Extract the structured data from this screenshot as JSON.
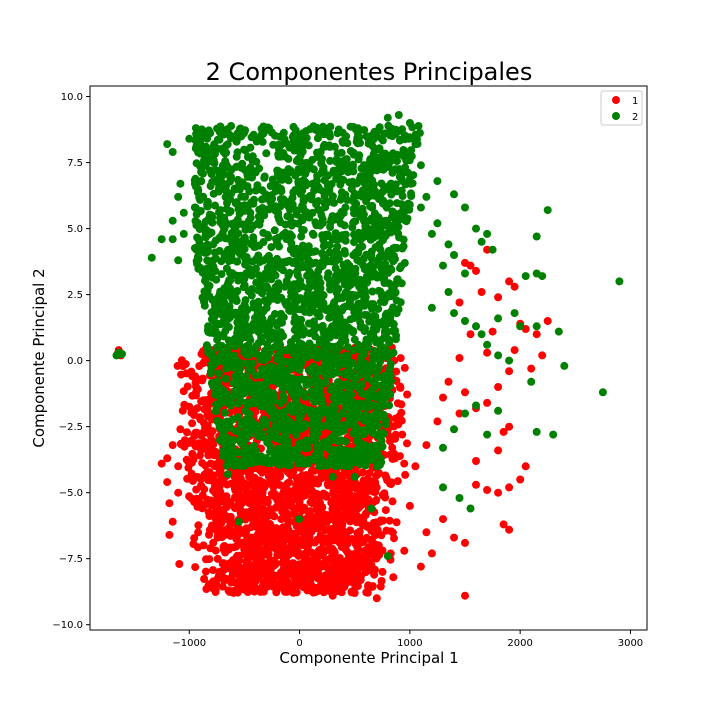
{
  "chart_data": {
    "type": "scatter",
    "title": "2 Componentes Principales",
    "xlabel": "Componente Principal 1",
    "ylabel": "Componente Principal 2",
    "xlim": [
      -1900,
      3150
    ],
    "ylim": [
      -10.2,
      10.4
    ],
    "xticks": [
      -1000,
      0,
      1000,
      2000,
      3000
    ],
    "xtick_labels": [
      "−1000",
      "0",
      "1000",
      "2000",
      "3000"
    ],
    "yticks": [
      -10.0,
      -7.5,
      -5.0,
      -2.5,
      0.0,
      2.5,
      5.0,
      7.5,
      10.0
    ],
    "ytick_labels": [
      "−10.0",
      "−7.5",
      "−5.0",
      "−2.5",
      "0.0",
      "2.5",
      "5.0",
      "7.5",
      "10.0"
    ],
    "grid": false,
    "legend_position": "top-right",
    "series": [
      {
        "name": "1",
        "color": "#ff0000",
        "cluster": {
          "x_range": [
            -1000,
            950
          ],
          "y_range": [
            -8.8,
            0.5
          ]
        },
        "points": [
          [
            -1640,
            0.4
          ],
          [
            -1650,
            0.25
          ],
          [
            -1620,
            0.2
          ],
          [
            -1250,
            -3.9
          ],
          [
            -1200,
            -3.7
          ],
          [
            -1150,
            -3.2
          ],
          [
            -1200,
            -4.6
          ],
          [
            -1180,
            -5.4
          ],
          [
            -1150,
            -6.1
          ],
          [
            -1180,
            -6.6
          ],
          [
            -1100,
            -4.0
          ],
          [
            -1080,
            -2.6
          ],
          [
            -1100,
            -5.0
          ],
          [
            -1090,
            -7.7
          ],
          [
            1100,
            -7.8
          ],
          [
            1150,
            -6.5
          ],
          [
            1200,
            -7.3
          ],
          [
            1300,
            -6.0
          ],
          [
            1400,
            -6.7
          ],
          [
            1500,
            -6.9
          ],
          [
            1500,
            -8.9
          ],
          [
            1600,
            -4.7
          ],
          [
            1700,
            -4.9
          ],
          [
            1800,
            -5.0
          ],
          [
            1850,
            -6.2
          ],
          [
            1900,
            -4.8
          ],
          [
            1900,
            -6.4
          ],
          [
            2000,
            -4.5
          ],
          [
            2050,
            -4.0
          ],
          [
            1850,
            -2.7
          ],
          [
            1900,
            -2.5
          ],
          [
            1800,
            -3.4
          ],
          [
            1600,
            -3.8
          ],
          [
            1450,
            -2.0
          ],
          [
            1500,
            -1.2
          ],
          [
            1600,
            -1.8
          ],
          [
            1700,
            -1.6
          ],
          [
            1800,
            -1.0
          ],
          [
            1900,
            -0.4
          ],
          [
            1950,
            0.4
          ],
          [
            2000,
            1.4
          ],
          [
            2050,
            1.2
          ],
          [
            2150,
            1.0
          ],
          [
            2250,
            1.5
          ],
          [
            2200,
            0.2
          ],
          [
            2100,
            -0.3
          ],
          [
            1650,
            2.6
          ],
          [
            1800,
            2.4
          ],
          [
            1900,
            3.0
          ],
          [
            1950,
            2.8
          ],
          [
            1600,
            3.4
          ],
          [
            1550,
            3.6
          ],
          [
            1500,
            3.7
          ],
          [
            1450,
            2.2
          ],
          [
            1700,
            4.2
          ],
          [
            1750,
            1.1
          ],
          [
            1700,
            0.3
          ],
          [
            1550,
            1.0
          ],
          [
            1450,
            0.1
          ],
          [
            1350,
            -0.8
          ],
          [
            1300,
            -1.4
          ],
          [
            1250,
            -2.3
          ],
          [
            1150,
            -3.2
          ],
          [
            1050,
            -4.0
          ],
          [
            1000,
            -5.5
          ],
          [
            950,
            -7.2
          ],
          [
            850,
            -8.2
          ],
          [
            700,
            -9.0
          ],
          [
            500,
            -8.8
          ],
          [
            300,
            -8.9
          ],
          [
            100,
            -8.7
          ]
        ]
      },
      {
        "name": "2",
        "color": "#008000",
        "cluster": {
          "x_range": [
            -950,
            1050
          ],
          "y_range": [
            -4.0,
            8.9
          ]
        },
        "points": [
          [
            -1660,
            0.2
          ],
          [
            -1640,
            0.3
          ],
          [
            -1610,
            0.25
          ],
          [
            -1340,
            3.9
          ],
          [
            -1250,
            4.6
          ],
          [
            -1150,
            4.6
          ],
          [
            -1100,
            3.8
          ],
          [
            -1050,
            4.8
          ],
          [
            -1150,
            5.3
          ],
          [
            -1100,
            6.2
          ],
          [
            -1200,
            8.2
          ],
          [
            -1150,
            7.9
          ],
          [
            -1080,
            6.7
          ],
          [
            -1050,
            5.6
          ],
          [
            -1000,
            8.4
          ],
          [
            -650,
            -4.3
          ],
          [
            -550,
            -6.1
          ],
          [
            -5,
            -6.0
          ],
          [
            650,
            -5.6
          ],
          [
            800,
            -7.4
          ],
          [
            300,
            -4.4
          ],
          [
            500,
            -4.4
          ],
          [
            700,
            -4.0
          ],
          [
            1300,
            -4.8
          ],
          [
            1450,
            -5.2
          ],
          [
            1550,
            -5.6
          ],
          [
            1300,
            -3.3
          ],
          [
            1400,
            -2.6
          ],
          [
            1500,
            -2.0
          ],
          [
            1600,
            -1.7
          ],
          [
            1700,
            -2.8
          ],
          [
            1800,
            -1.9
          ],
          [
            1900,
            0.0
          ],
          [
            2100,
            -0.8
          ],
          [
            2150,
            -2.7
          ],
          [
            2300,
            -2.8
          ],
          [
            2400,
            -0.2
          ],
          [
            2750,
            -1.2
          ],
          [
            2900,
            3.0
          ],
          [
            1700,
            0.6
          ],
          [
            1800,
            0.2
          ],
          [
            1600,
            1.3
          ],
          [
            1500,
            1.5
          ],
          [
            1400,
            1.8
          ],
          [
            1350,
            2.6
          ],
          [
            1650,
            1.0
          ],
          [
            1800,
            1.6
          ],
          [
            1950,
            1.8
          ],
          [
            2050,
            3.2
          ],
          [
            2150,
            3.3
          ],
          [
            2200,
            3.2
          ],
          [
            2150,
            4.7
          ],
          [
            2250,
            5.7
          ],
          [
            2000,
            1.3
          ],
          [
            2150,
            1.3
          ],
          [
            2350,
            1.1
          ],
          [
            1400,
            6.3
          ],
          [
            1500,
            5.8
          ],
          [
            1600,
            5.0
          ],
          [
            1650,
            4.5
          ],
          [
            1700,
            4.8
          ],
          [
            1750,
            4.2
          ],
          [
            1500,
            3.3
          ],
          [
            1350,
            4.4
          ],
          [
            1250,
            5.2
          ],
          [
            1150,
            6.2
          ],
          [
            1100,
            7.4
          ],
          [
            1050,
            8.2
          ],
          [
            1000,
            9.0
          ],
          [
            900,
            9.3
          ],
          [
            800,
            9.2
          ],
          [
            700,
            8.5
          ],
          [
            1200,
            2.0
          ],
          [
            1300,
            3.6
          ],
          [
            1400,
            4.0
          ],
          [
            1250,
            6.8
          ],
          [
            1100,
            5.8
          ],
          [
            1200,
            4.8
          ]
        ]
      }
    ]
  }
}
